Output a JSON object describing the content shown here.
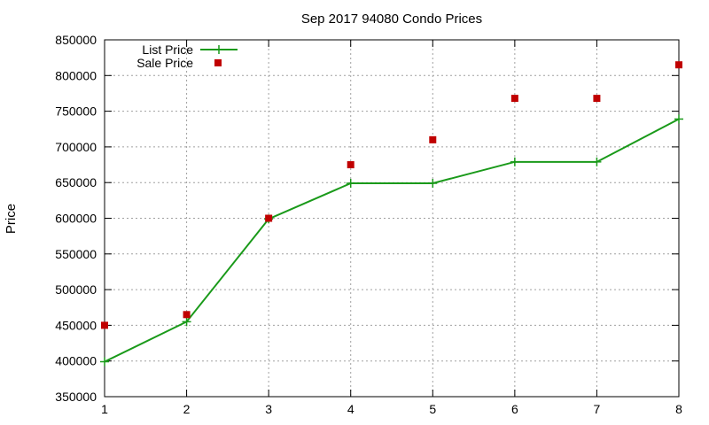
{
  "chart_data": {
    "type": "line",
    "title": "Sep 2017 94080 Condo Prices",
    "xlabel": "",
    "ylabel": "Price",
    "x": [
      1,
      2,
      3,
      4,
      5,
      6,
      7,
      8
    ],
    "xlim": [
      1,
      8
    ],
    "ylim": [
      350000,
      850000
    ],
    "x_ticks": [
      "1",
      "2",
      "3",
      "4",
      "5",
      "6",
      "7",
      "8"
    ],
    "y_ticks": [
      "350000",
      "400000",
      "450000",
      "500000",
      "550000",
      "600000",
      "650000",
      "700000",
      "750000",
      "800000",
      "850000"
    ],
    "grid": true,
    "legend_position": "top-left",
    "series": [
      {
        "name": "List Price",
        "style": "linespoints",
        "color": "#1a9a1a",
        "values": [
          399000,
          455000,
          599000,
          649000,
          649000,
          679000,
          679000,
          739000
        ]
      },
      {
        "name": "Sale Price",
        "style": "points",
        "color": "#c00000",
        "values": [
          450000,
          465000,
          600000,
          675000,
          710000,
          768000,
          768000,
          815000
        ]
      }
    ]
  }
}
